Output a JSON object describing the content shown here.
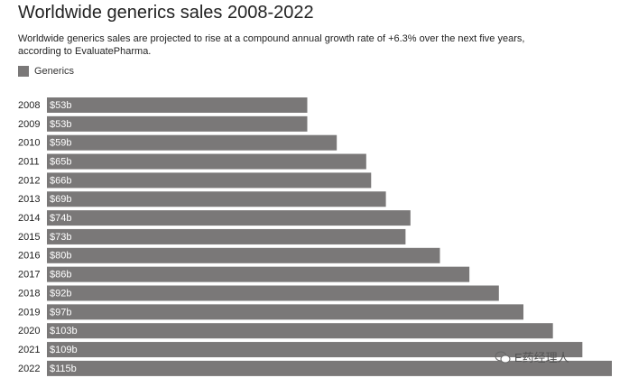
{
  "chart_data": {
    "type": "bar",
    "orientation": "horizontal",
    "title": "Worldwide generics sales 2008-2022",
    "subtitle": "Worldwide generics sales are projected to rise at a compound annual growth rate of +6.3% over the next five years, according to EvaluatePharma.",
    "categories": [
      "2008",
      "2009",
      "2010",
      "2011",
      "2012",
      "2013",
      "2014",
      "2015",
      "2016",
      "2017",
      "2018",
      "2019",
      "2020",
      "2021",
      "2022"
    ],
    "series": [
      {
        "name": "Generics",
        "color": "#7a7878",
        "values": [
          53,
          53,
          59,
          65,
          66,
          69,
          74,
          73,
          80,
          86,
          92,
          97,
          103,
          109,
          115
        ],
        "value_labels": [
          "$53b",
          "$53b",
          "$59b",
          "$65b",
          "$66b",
          "$69b",
          "$74b",
          "$73b",
          "$80b",
          "$86b",
          "$92b",
          "$97b",
          "$103b",
          "$109b",
          "$115b"
        ]
      }
    ],
    "xlim": [
      0,
      115
    ]
  },
  "watermark": "E药经理人"
}
